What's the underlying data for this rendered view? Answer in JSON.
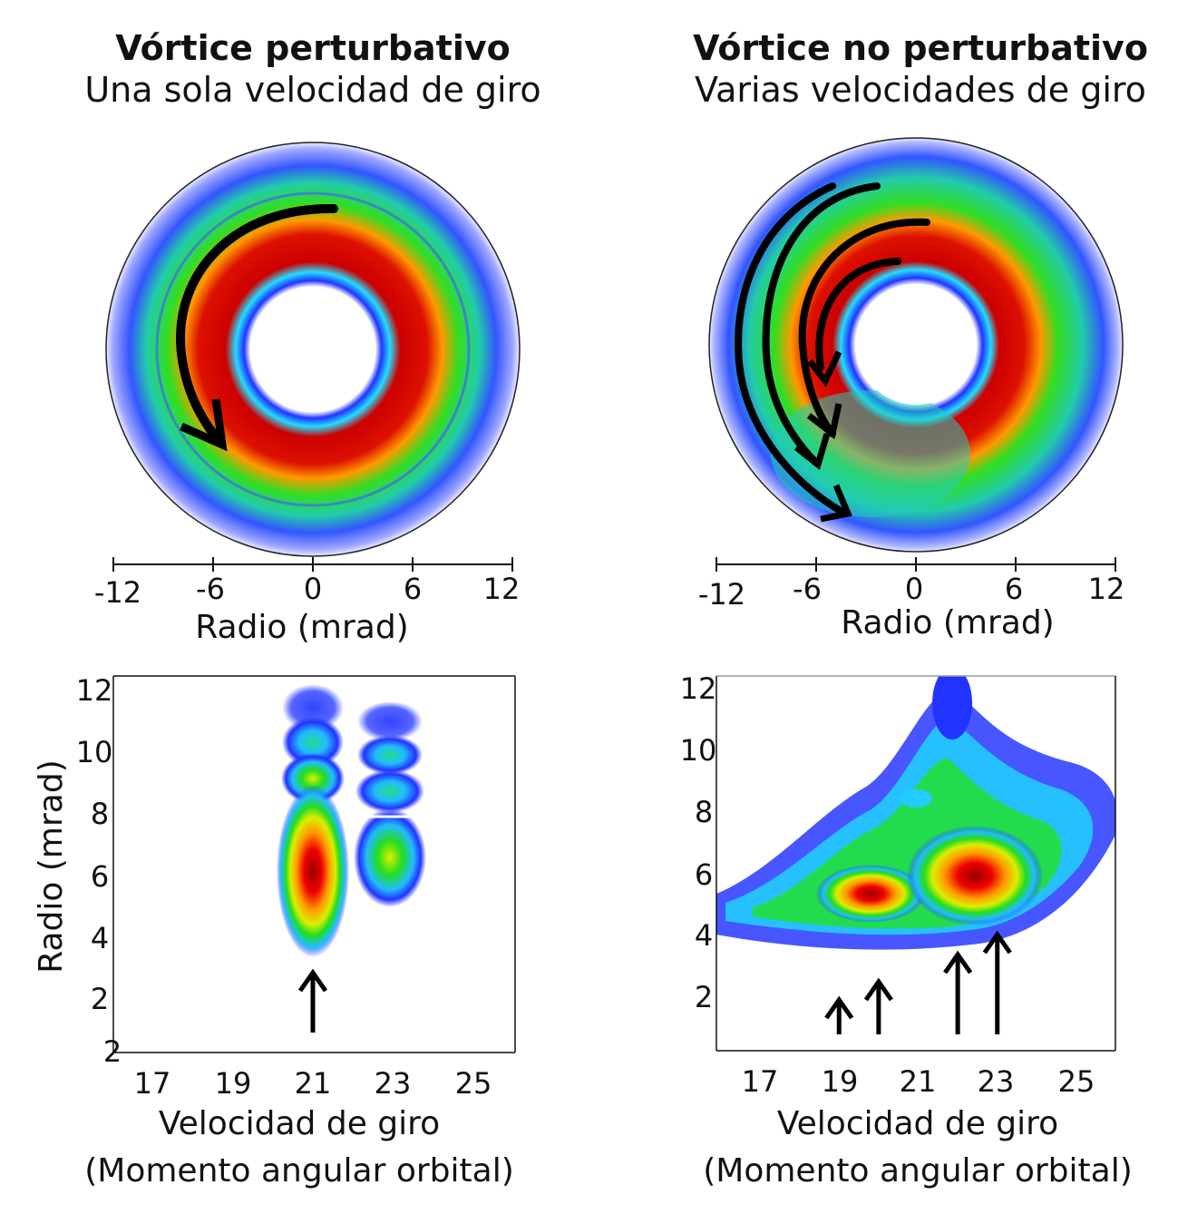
{
  "left_panel": {
    "title": "Vórtice perturbativo",
    "subtitle": "Una sola velocidad de giro",
    "ring_axis": {
      "ticks": [
        "-12",
        "-6",
        "0",
        "6",
        "12"
      ],
      "label": "Radio (mrad)"
    },
    "map_axis": {
      "y_ticks": [
        "2",
        "4",
        "6",
        "8",
        "10",
        "12"
      ],
      "y_label": "Radio (mrad)",
      "x_ticks": [
        "17",
        "19",
        "21",
        "23",
        "25"
      ],
      "corner_tick": "2",
      "x_label": "Velocidad de giro",
      "x_label_2": "(Momento angular orbital)"
    },
    "arrow_positions": [
      21
    ]
  },
  "right_panel": {
    "title": "Vórtice no perturbativo",
    "subtitle": "Varias velocidades de giro",
    "ring_axis": {
      "ticks": [
        "-12",
        "-6",
        "0",
        "6",
        "12"
      ],
      "label": "Radio (mrad)"
    },
    "map_axis": {
      "y_ticks": [
        "2",
        "4",
        "6",
        "8",
        "10",
        "12"
      ],
      "x_ticks": [
        "17",
        "19",
        "21",
        "23",
        "25"
      ],
      "x_label": "Velocidad de giro",
      "x_label_2": "(Momento angular orbital)"
    },
    "arrow_positions": [
      19,
      20,
      22,
      23
    ]
  },
  "colors": {
    "low": "#1a1aff",
    "mid": "#22dd22",
    "high": "#cc0000",
    "peak": "#990000"
  }
}
